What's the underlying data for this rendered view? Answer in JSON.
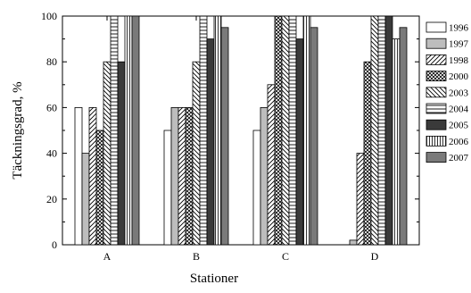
{
  "chart_data": {
    "type": "bar",
    "title": "",
    "xlabel": "Stationer",
    "ylabel": "Täckningsgrad, %",
    "ylim": [
      0,
      100
    ],
    "yticks": [
      0,
      20,
      40,
      60,
      80,
      100
    ],
    "grid": false,
    "legend_position": "right",
    "categories": [
      "A",
      "B",
      "C",
      "D"
    ],
    "series": [
      {
        "name": "1996",
        "values": [
          60,
          50,
          50,
          0
        ],
        "pattern": "solid-white",
        "color": "#ffffff"
      },
      {
        "name": "1997",
        "values": [
          40,
          60,
          60,
          2
        ],
        "pattern": "solid-lightgray",
        "color": "#bdbdbd"
      },
      {
        "name": "1998",
        "values": [
          60,
          60,
          70,
          40
        ],
        "pattern": "diagonal-hatch",
        "color": "#ffffff"
      },
      {
        "name": "2000",
        "values": [
          50,
          60,
          100,
          80
        ],
        "pattern": "cross-hatch",
        "color": "#ffffff"
      },
      {
        "name": "2003",
        "values": [
          80,
          80,
          100,
          100
        ],
        "pattern": "back-diagonal-hatch",
        "color": "#ffffff"
      },
      {
        "name": "2004",
        "values": [
          100,
          100,
          100,
          100
        ],
        "pattern": "horizontal-lines",
        "color": "#ffffff"
      },
      {
        "name": "2005",
        "values": [
          80,
          90,
          90,
          100
        ],
        "pattern": "solid-darkgray",
        "color": "#3a3a3a"
      },
      {
        "name": "2006",
        "values": [
          100,
          100,
          100,
          90
        ],
        "pattern": "vertical-lines",
        "color": "#ffffff"
      },
      {
        "name": "2007",
        "values": [
          100,
          95,
          95,
          95
        ],
        "pattern": "solid-gray",
        "color": "#7a7a7a"
      }
    ]
  }
}
